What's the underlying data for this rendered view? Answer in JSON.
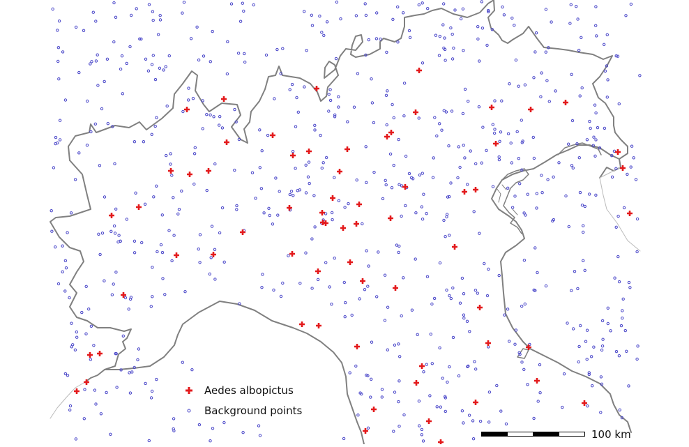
{
  "legend": {
    "presence_label": "Aedes albopictus",
    "background_label": "Background points"
  },
  "scalebar": {
    "label": "100 km",
    "segments": 4
  },
  "colors": {
    "presence": "#e31a1c",
    "background": "#4a47c9",
    "border": "#808080",
    "foreign_border": "#bbbbbb"
  }
}
